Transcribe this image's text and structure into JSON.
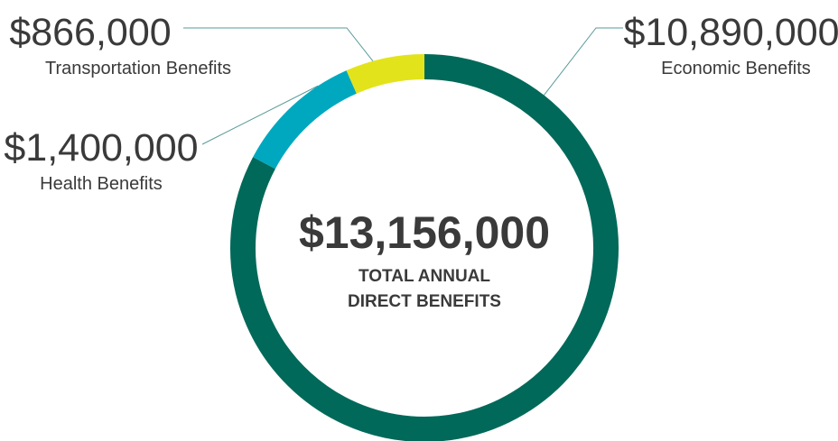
{
  "chart_data": {
    "type": "pie",
    "style": "donut",
    "total": {
      "value_label": "$13,156,000",
      "caption_line1": "TOTAL ANNUAL",
      "caption_line2": "DIRECT BENEFITS"
    },
    "slices": [
      {
        "key": "economic",
        "value": 10890000,
        "value_label": "$10,890,000",
        "label": "Economic Benefits",
        "color": "#00695a"
      },
      {
        "key": "health",
        "value": 1400000,
        "value_label": "$1,400,000",
        "label": "Health Benefits",
        "color": "#00a8bf"
      },
      {
        "key": "transportation",
        "value": 866000,
        "value_label": "$866,000",
        "label": "Transportation Benefits",
        "color": "#e3e31c"
      }
    ],
    "legend": "callout-labels"
  }
}
